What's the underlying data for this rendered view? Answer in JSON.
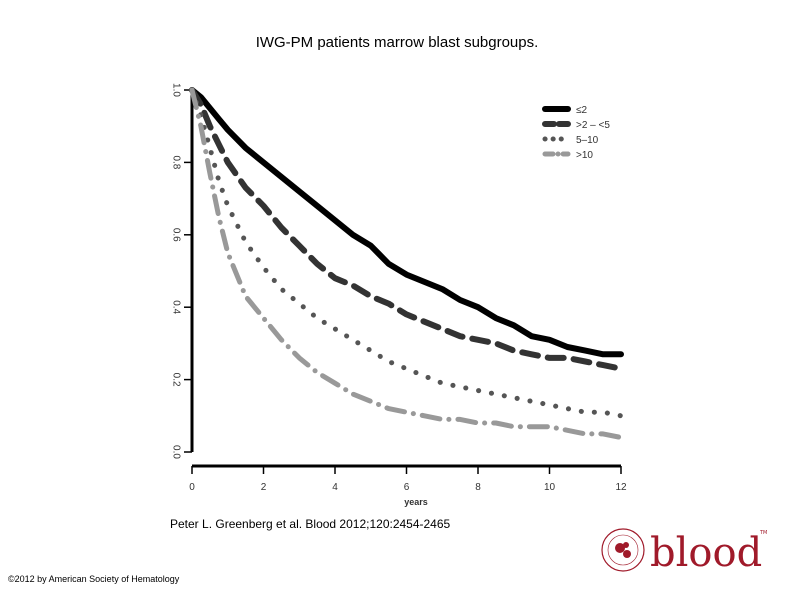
{
  "slide": {
    "title": "IWG-PM patients marrow blast subgroups.",
    "citation": "Peter L. Greenberg et al. Blood 2012;120:2454-2465",
    "copyright": "©2012 by American Society of Hematology",
    "logo_text": "blood"
  },
  "chart_data": {
    "type": "line",
    "xlabel": "years",
    "ylabel": "",
    "xlim": [
      0,
      12
    ],
    "ylim": [
      0,
      1.0
    ],
    "xticks": [
      "0",
      "2",
      "4",
      "6",
      "8",
      "10",
      "12"
    ],
    "yticks": [
      "0.0",
      "0.2",
      "0.4",
      "0.6",
      "0.8",
      "1.0"
    ],
    "grid": false,
    "legend_position": "top-right",
    "x": [
      0,
      0.25,
      0.5,
      0.75,
      1,
      1.5,
      2,
      2.5,
      3,
      3.5,
      4,
      4.5,
      5,
      5.5,
      6,
      6.5,
      7,
      7.5,
      8,
      8.5,
      9,
      9.5,
      10,
      10.5,
      11,
      11.5,
      12
    ],
    "series": [
      {
        "name": "≤2",
        "style": "solid",
        "color": "#000000",
        "values": [
          1.0,
          0.98,
          0.95,
          0.92,
          0.89,
          0.84,
          0.8,
          0.76,
          0.72,
          0.68,
          0.64,
          0.6,
          0.57,
          0.52,
          0.49,
          0.47,
          0.45,
          0.42,
          0.4,
          0.37,
          0.35,
          0.32,
          0.31,
          0.29,
          0.28,
          0.27,
          0.27
        ]
      },
      {
        "name": ">2 – <5",
        "style": "dashed",
        "color": "#333333",
        "values": [
          1.0,
          0.96,
          0.9,
          0.85,
          0.8,
          0.73,
          0.68,
          0.62,
          0.57,
          0.52,
          0.48,
          0.46,
          0.43,
          0.41,
          0.38,
          0.36,
          0.34,
          0.32,
          0.31,
          0.3,
          0.28,
          0.27,
          0.26,
          0.26,
          0.25,
          0.24,
          0.23
        ]
      },
      {
        "name": "5–10",
        "style": "dotted",
        "color": "#555555",
        "values": [
          1.0,
          0.93,
          0.84,
          0.75,
          0.68,
          0.58,
          0.51,
          0.45,
          0.41,
          0.37,
          0.34,
          0.31,
          0.28,
          0.25,
          0.23,
          0.21,
          0.19,
          0.18,
          0.17,
          0.16,
          0.15,
          0.14,
          0.13,
          0.12,
          0.11,
          0.11,
          0.1
        ]
      },
      {
        "name": ">10",
        "style": "dashdot",
        "color": "#999999",
        "values": [
          1.0,
          0.9,
          0.77,
          0.65,
          0.55,
          0.43,
          0.37,
          0.31,
          0.26,
          0.22,
          0.19,
          0.16,
          0.14,
          0.12,
          0.11,
          0.1,
          0.09,
          0.09,
          0.08,
          0.08,
          0.07,
          0.07,
          0.07,
          0.06,
          0.05,
          0.05,
          0.04
        ]
      }
    ]
  }
}
